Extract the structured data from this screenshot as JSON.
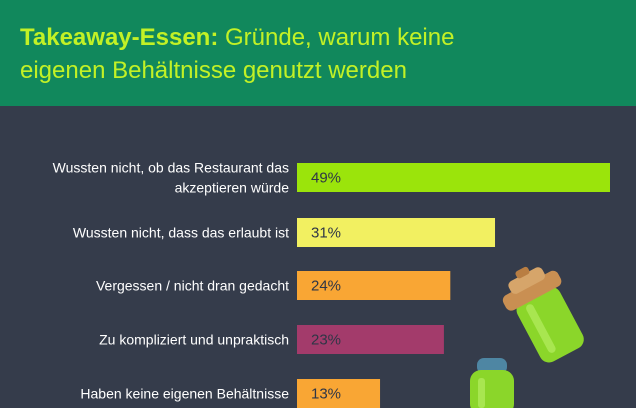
{
  "header": {
    "title_bold": "Takeaway-Essen:",
    "title_line1_rest": " Gründe, warum keine",
    "title_line2": "eigenen Behältnisse genutzt werden"
  },
  "colors": {
    "header_bg": "#11885c",
    "page_bg": "#353c4b",
    "title": "#c2f126"
  },
  "chart_data": {
    "type": "bar",
    "orientation": "horizontal",
    "categories": [
      [
        "Wussten nicht, ob das Restaurant das",
        "akzeptieren würde"
      ],
      [
        "Wussten nicht, dass das erlaubt ist"
      ],
      [
        "Vergessen / nicht dran gedacht"
      ],
      [
        "Zu kompliziert und unpraktisch"
      ],
      [
        "Haben keine eigenen Behältnisse"
      ]
    ],
    "values": [
      49,
      31,
      24,
      23,
      13
    ],
    "value_labels": [
      "49%",
      "31%",
      "24%",
      "23%",
      "13%"
    ],
    "bar_colors": [
      "#9be40b",
      "#f2f061",
      "#f9a634",
      "#a33b6b",
      "#f9a634"
    ],
    "xlim": [
      0,
      49
    ],
    "unit": "%"
  }
}
